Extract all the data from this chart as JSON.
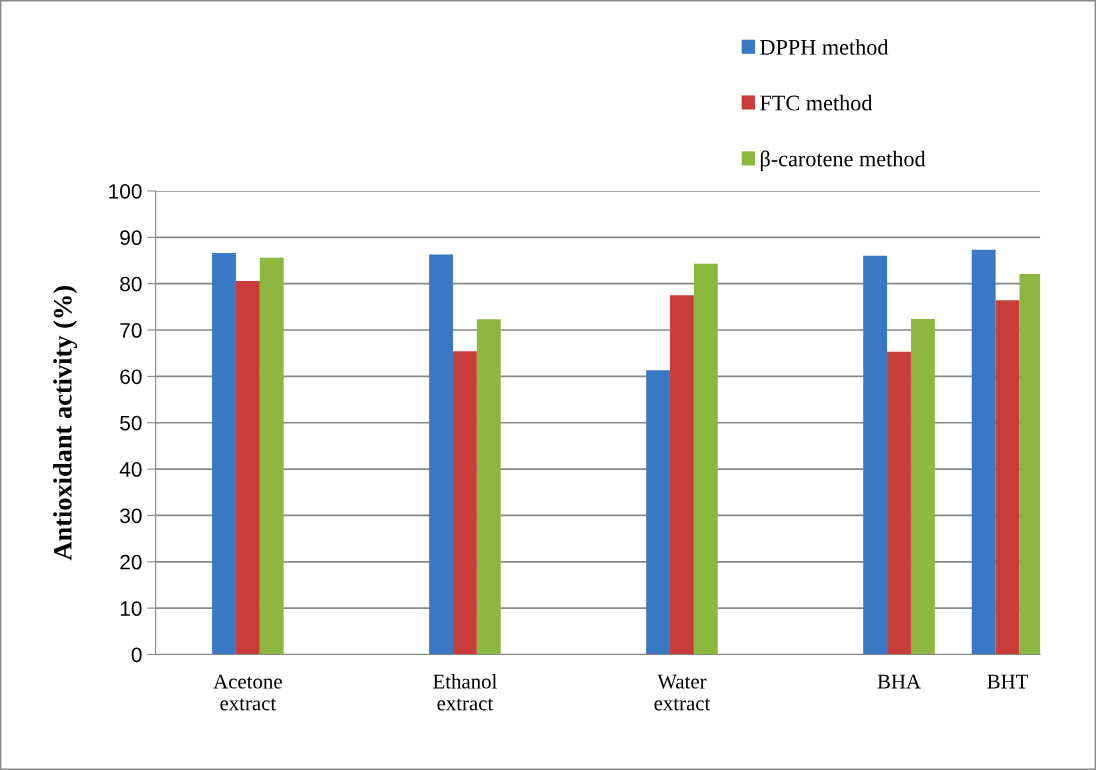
{
  "chart_data": {
    "type": "bar",
    "ylabel": "Antioxidant activity (%)",
    "categories": [
      "Acetone\nextract",
      null,
      "Ethanol\nextract",
      null,
      "Water\nextract",
      null,
      "BHA",
      "BHT"
    ],
    "series": [
      {
        "name": "DPPH method",
        "color": "#3a78c6",
        "values": [
          86.6,
          null,
          86.3,
          null,
          61.3,
          null,
          86.0,
          87.3
        ]
      },
      {
        "name": "FTC method",
        "color": "#c93c3a",
        "values": [
          80.6,
          null,
          65.4,
          null,
          77.5,
          null,
          65.3,
          76.4
        ]
      },
      {
        "name": "β-carotene method",
        "color": "#8db83f",
        "values": [
          85.6,
          null,
          72.3,
          null,
          84.3,
          null,
          72.4,
          82.1
        ]
      }
    ],
    "ylim": [
      0,
      100
    ],
    "yticks": [
      0,
      10,
      20,
      30,
      40,
      50,
      60,
      70,
      80,
      90,
      100
    ],
    "grid": "y",
    "legend": "top right"
  }
}
